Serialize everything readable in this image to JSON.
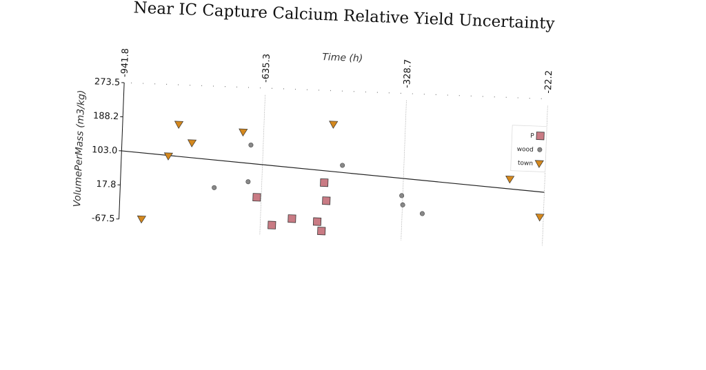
{
  "chart_data": {
    "type": "scatter",
    "title": "Near IC Capture Calcium Relative Yield Uncertainty",
    "xlabel": "Time (h)",
    "ylabel": "VolumePerMass (m3/kg)",
    "x_ticks": [
      "-941.8",
      "-635.3",
      "-328.7",
      "-22.2"
    ],
    "y_ticks": [
      "273.5",
      "188.2",
      "103.0",
      "17.8",
      "-67.5"
    ],
    "xlim": [
      -941.8,
      -22.2
    ],
    "ylim": [
      -67.5,
      273.5
    ],
    "x_axis_position": "top",
    "grid": "vertical",
    "legend_position": "right",
    "series": [
      {
        "name": "P",
        "marker": "square",
        "color": "#c97b84",
        "points": [
          {
            "x": -645,
            "y": 0
          },
          {
            "x": -610,
            "y": -68
          },
          {
            "x": -567,
            "y": -50
          },
          {
            "x": -512,
            "y": -55
          },
          {
            "x": -500,
            "y": 43
          },
          {
            "x": -494,
            "y": -2
          },
          {
            "x": -502,
            "y": -78
          }
        ]
      },
      {
        "name": "wood",
        "marker": "circle",
        "color": "#888888",
        "points": [
          {
            "x": -662,
            "y": 130
          },
          {
            "x": -665,
            "y": 38
          },
          {
            "x": -738,
            "y": 20
          },
          {
            "x": -462,
            "y": 88
          },
          {
            "x": -331,
            "y": 18
          },
          {
            "x": -328,
            "y": -5
          },
          {
            "x": -285,
            "y": -25
          }
        ]
      },
      {
        "name": "town",
        "marker": "triangle-down",
        "color": "#d4881e",
        "points": [
          {
            "x": -893,
            "y": -65
          },
          {
            "x": -840,
            "y": 95
          },
          {
            "x": -820,
            "y": 175
          },
          {
            "x": -790,
            "y": 130
          },
          {
            "x": -680,
            "y": 162
          },
          {
            "x": -485,
            "y": 190
          },
          {
            "x": -98,
            "y": 70
          },
          {
            "x": -30,
            "y": -22
          }
        ]
      }
    ],
    "trend_line": {
      "x": [
        -941.8,
        -22.2
      ],
      "y": [
        103.0,
        40.0
      ]
    }
  }
}
